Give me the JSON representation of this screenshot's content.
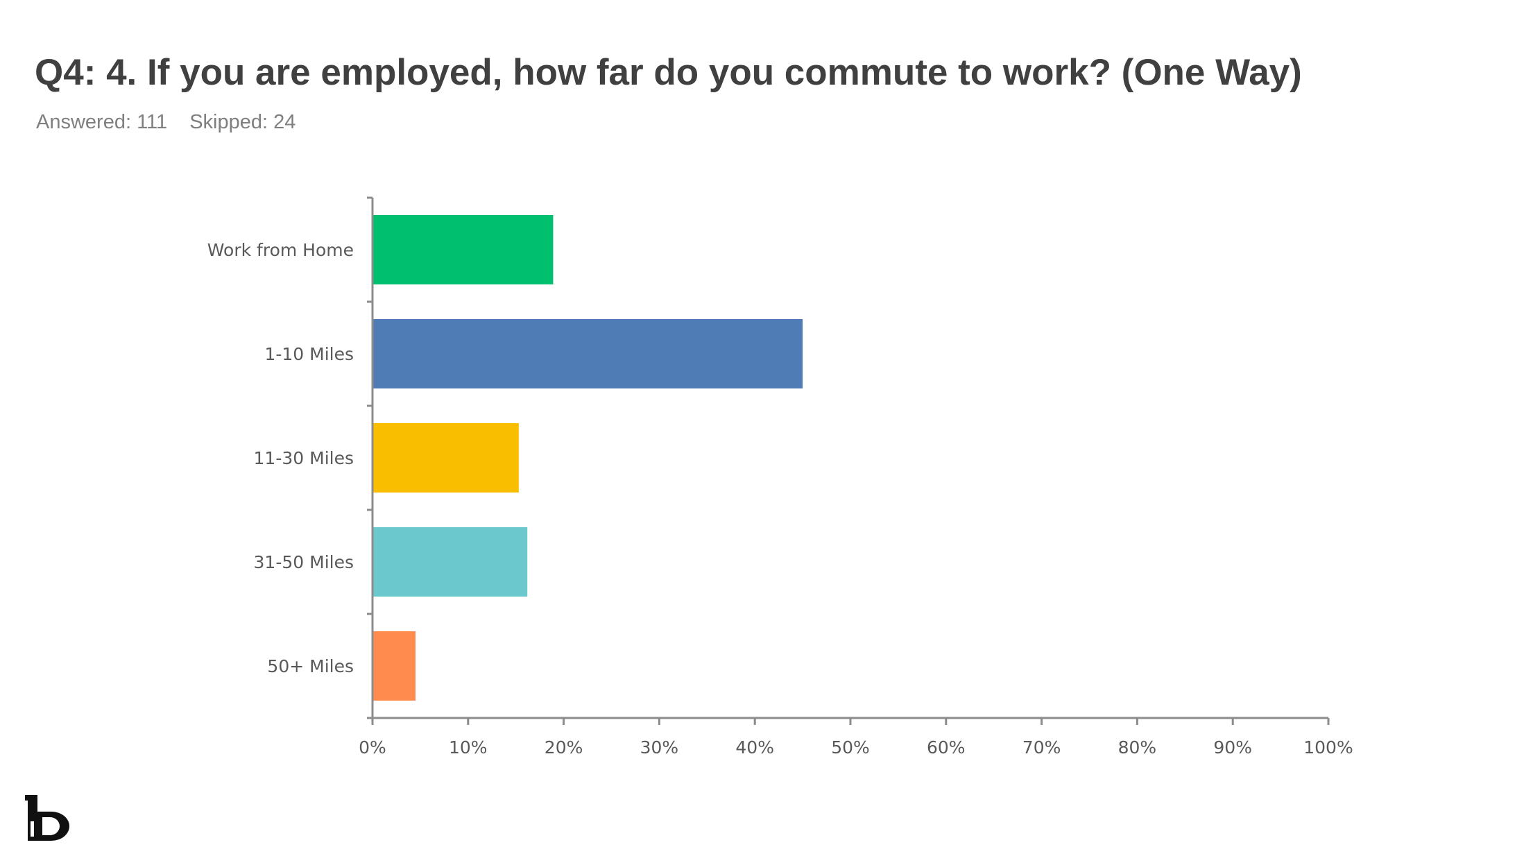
{
  "header": {
    "title": "Q4: 4. If you are employed, how far do you commute to work? (One Way)",
    "answered": "Answered: 111",
    "skipped": "Skipped: 24"
  },
  "chart_data": {
    "type": "bar",
    "orientation": "horizontal",
    "categories": [
      "Work from Home",
      "1-10 Miles",
      "11-30 Miles",
      "31-50 Miles",
      "50+ Miles"
    ],
    "values": [
      18.9,
      45.0,
      15.3,
      16.2,
      4.5
    ],
    "colors": [
      "#00bf6f",
      "#507cb6",
      "#f9be00",
      "#6bc8cd",
      "#ff8b4f"
    ],
    "xlim": [
      0,
      100
    ],
    "xticks": [
      "0%",
      "10%",
      "20%",
      "30%",
      "40%",
      "50%",
      "60%",
      "70%",
      "80%",
      "90%",
      "100%"
    ],
    "grid": false,
    "legend": "none"
  },
  "logo": {
    "icon": "company-logo-icon"
  }
}
